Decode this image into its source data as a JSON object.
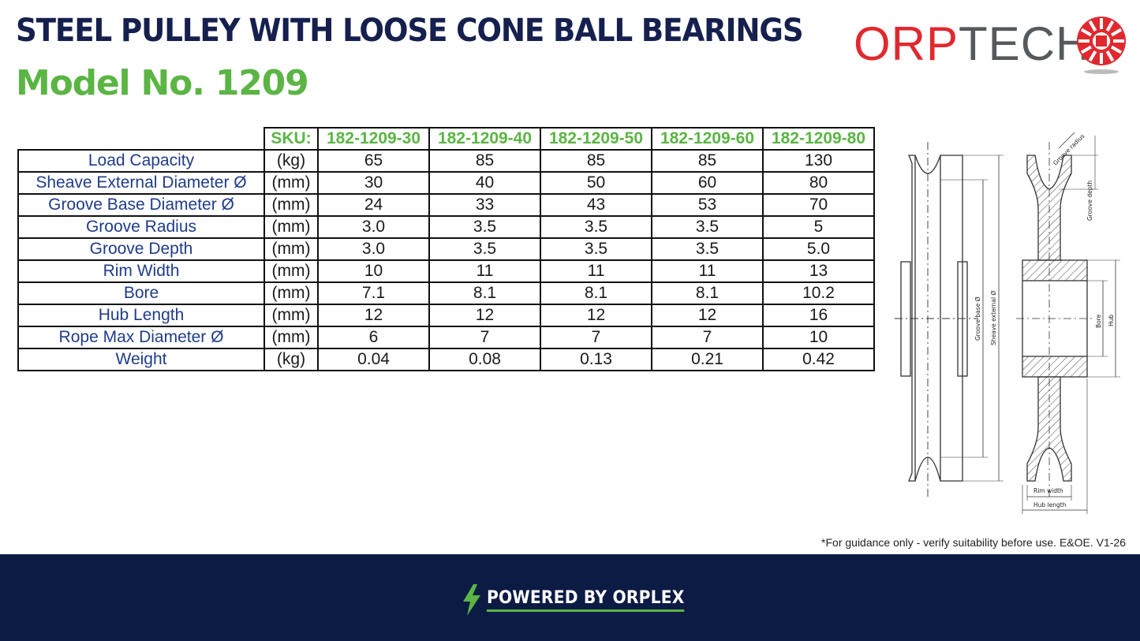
{
  "header": {
    "title": "STEEL PULLEY WITH LOOSE CONE BALL BEARINGS",
    "subtitle": "Model No. 1209"
  },
  "logo": {
    "part1": "ORP",
    "part2": "TECH",
    "accent": "#e0292f",
    "gray": "#555a5e"
  },
  "table": {
    "sku_label": "SKU:",
    "skus": [
      "182-1209-30",
      "182-1209-40",
      "182-1209-50",
      "182-1209-60",
      "182-1209-80"
    ],
    "rows": [
      {
        "label": "Load Capacity",
        "unit": "(kg)",
        "values": [
          "65",
          "85",
          "85",
          "85",
          "130"
        ]
      },
      {
        "label": "Sheave External Diameter Ø",
        "unit": "(mm)",
        "values": [
          "30",
          "40",
          "50",
          "60",
          "80"
        ]
      },
      {
        "label": "Groove Base Diameter Ø",
        "unit": "(mm)",
        "values": [
          "24",
          "33",
          "43",
          "53",
          "70"
        ]
      },
      {
        "label": "Groove Radius",
        "unit": "(mm)",
        "values": [
          "3.0",
          "3.5",
          "3.5",
          "3.5",
          "5"
        ]
      },
      {
        "label": "Groove Depth",
        "unit": "(mm)",
        "values": [
          "3.0",
          "3.5",
          "3.5",
          "3.5",
          "5.0"
        ]
      },
      {
        "label": "Rim Width",
        "unit": "(mm)",
        "values": [
          "10",
          "11",
          "11",
          "11",
          "13"
        ]
      },
      {
        "label": "Bore",
        "unit": "(mm)",
        "values": [
          "7.1",
          "8.1",
          "8.1",
          "8.1",
          "10.2"
        ]
      },
      {
        "label": "Hub Length",
        "unit": "(mm)",
        "values": [
          "12",
          "12",
          "12",
          "12",
          "16"
        ]
      },
      {
        "label": "Rope Max Diameter Ø",
        "unit": "(mm)",
        "values": [
          "6",
          "7",
          "7",
          "7",
          "10"
        ]
      },
      {
        "label": "Weight",
        "unit": "(kg)",
        "values": [
          "0.04",
          "0.08",
          "0.13",
          "0.21",
          "0.42"
        ]
      }
    ]
  },
  "drawing": {
    "labels": {
      "groove_radius": "Groove radius",
      "groove_depth": "Groove depth",
      "groove_base": "Groove base Ø",
      "sheave_external": "Sheave external Ø",
      "bore": "Bore",
      "hub": "Hub",
      "rim_width": "Rim width",
      "hub_length": "Hub length"
    }
  },
  "footnote": "*For guidance only - verify suitability before use. E&OE.  V1-26",
  "footer": {
    "powered": "POWERED BY ORPLEX",
    "bg": "#0c1b44",
    "accent": "#5bb544"
  }
}
